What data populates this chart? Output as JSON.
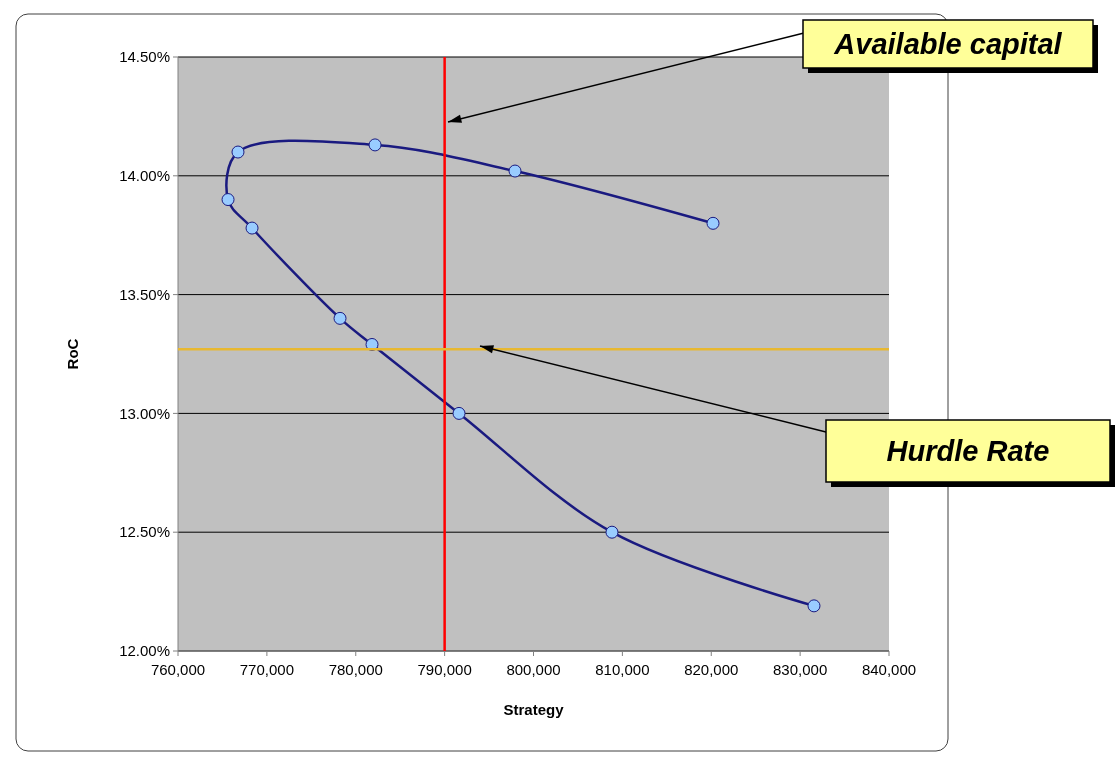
{
  "chart_data": {
    "type": "line",
    "xlabel": "Strategy",
    "ylabel": "RoC",
    "x": [
      831560,
      808830,
      791620,
      781830,
      778230,
      768330,
      765630,
      766750,
      782170,
      797920,
      820200
    ],
    "series": [
      {
        "color": "#1a1a80",
        "values": [
          12.19,
          12.5,
          13.0,
          13.29,
          13.4,
          13.78,
          13.9,
          14.1,
          14.13,
          14.02,
          13.8
        ]
      }
    ],
    "xlim": [
      760000,
      840000
    ],
    "xticks": [
      {
        "value": 760000,
        "label": "760,000"
      },
      {
        "value": 770000,
        "label": "770,000"
      },
      {
        "value": 780000,
        "label": "780,000"
      },
      {
        "value": 790000,
        "label": "790,000"
      },
      {
        "value": 800000,
        "label": "800,000"
      },
      {
        "value": 810000,
        "label": "810,000"
      },
      {
        "value": 820000,
        "label": "820,000"
      },
      {
        "value": 830000,
        "label": "830,000"
      },
      {
        "value": 840000,
        "label": "840,000"
      }
    ],
    "ylim": [
      12,
      14.5
    ],
    "yticks": [
      {
        "value": 12,
        "label": "12.00%"
      },
      {
        "value": 12.5,
        "label": "12.50%"
      },
      {
        "value": 13,
        "label": "13.00%"
      },
      {
        "value": 13.5,
        "label": "13.50%"
      },
      {
        "value": 14,
        "label": "14.00%"
      },
      {
        "value": 14.5,
        "label": "14.50%"
      }
    ],
    "ref_lines": [
      {
        "axis": "x",
        "value": 790000,
        "label": "Available capital",
        "color": "#ff0000"
      },
      {
        "axis": "y",
        "value": 13.27,
        "label": "Hurdle Rate",
        "color": "#e8b830"
      }
    ],
    "grid": "y",
    "marker": "circle",
    "line_style": "solid"
  }
}
